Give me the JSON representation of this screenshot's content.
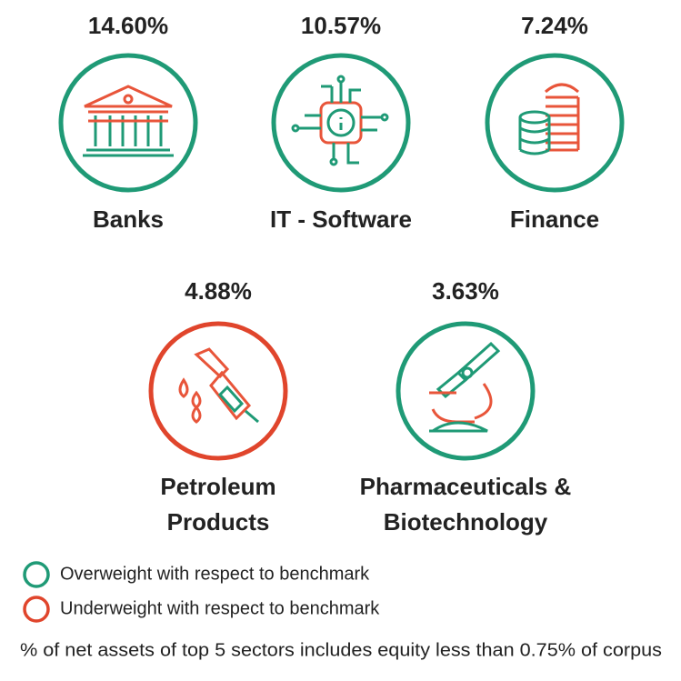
{
  "sectors": [
    {
      "value": "14.60%",
      "name": [
        "Banks"
      ],
      "color": "#1f9a76"
    },
    {
      "value": "10.57%",
      "name": [
        "IT - Software"
      ],
      "color": "#1f9a76"
    },
    {
      "value": "7.24%",
      "name": [
        "Finance"
      ],
      "color": "#1f9a76"
    },
    {
      "value": "4.88%",
      "name": [
        "Petroleum",
        "Products"
      ],
      "color": "#e0452c"
    },
    {
      "value": "3.63%",
      "name": [
        "Pharmaceuticals &",
        "Biotechnology"
      ],
      "color": "#1f9a76"
    }
  ],
  "legend": [
    {
      "label": "Overweight with respect to benchmark",
      "color": "#1f9a76"
    },
    {
      "label": "Underweight with respect to benchmark",
      "color": "#e0452c"
    }
  ],
  "footnote": "% of net assets of top 5 sectors includes equity less than 0.75% of corpus"
}
